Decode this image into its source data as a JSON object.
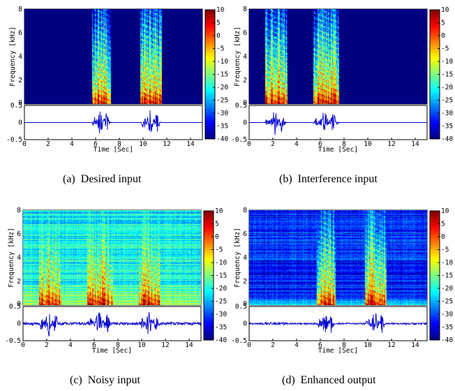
{
  "figure": {
    "panels": [
      {
        "letter": "(a)",
        "caption": "Desired input"
      },
      {
        "letter": "(b)",
        "caption": "Interference input"
      },
      {
        "letter": "(c)",
        "caption": "Noisy input"
      },
      {
        "letter": "(d)",
        "caption": "Enhanced output"
      }
    ],
    "spectrogram_ylabel": "Frequency [kHz]",
    "time_xlabel": "Time [Sec]",
    "freq_ticks": [
      "0",
      "2",
      "4",
      "6",
      "8"
    ],
    "wave_ticks": [
      "-0.5",
      "0",
      "0.5"
    ],
    "time_ticks": [
      "0",
      "2",
      "4",
      "6",
      "8",
      "10",
      "12",
      "14"
    ],
    "colorbar_ticks": [
      "10",
      "5",
      "0",
      "-5",
      "-10",
      "-15",
      "-20",
      "-25",
      "-30",
      "-35",
      "-40"
    ]
  },
  "chart_data": [
    {
      "type": "heatmap",
      "panel": "(a) Desired input",
      "xlabel": "Time [Sec]",
      "ylabel": "Frequency [kHz]",
      "xlim": [
        0,
        15
      ],
      "ylim": [
        0,
        8
      ],
      "clim": [
        -40,
        10
      ],
      "colormap": "jet",
      "speech_segments_sec": [
        [
          5.7,
          7.3
        ],
        [
          9.8,
          11.6
        ]
      ],
      "waveform_ylim": [
        -0.5,
        0.5
      ],
      "background": "uniform -40 dB outside speech segments"
    },
    {
      "type": "heatmap",
      "panel": "(b) Interference input",
      "xlabel": "Time [Sec]",
      "ylabel": "Frequency [kHz]",
      "xlim": [
        0,
        15
      ],
      "ylim": [
        0,
        8
      ],
      "clim": [
        -40,
        10
      ],
      "colormap": "jet",
      "speech_segments_sec": [
        [
          1.3,
          3.2
        ],
        [
          5.4,
          7.6
        ]
      ],
      "waveform_ylim": [
        -0.5,
        0.5
      ],
      "background": "uniform -40 dB outside speech segments"
    },
    {
      "type": "heatmap",
      "panel": "(c) Noisy input",
      "xlabel": "Time [Sec]",
      "ylabel": "Frequency [kHz]",
      "xlim": [
        0,
        15
      ],
      "ylim": [
        0,
        8
      ],
      "clim": [
        -40,
        10
      ],
      "colormap": "jet",
      "speech_segments_sec": [
        [
          1.3,
          3.2
        ],
        [
          5.4,
          7.6
        ],
        [
          9.8,
          11.6
        ]
      ],
      "waveform_ylim": [
        -0.5,
        0.5
      ],
      "background": "broadband noise around -20 dB throughout"
    },
    {
      "type": "heatmap",
      "panel": "(d) Enhanced output",
      "xlabel": "Time [Sec]",
      "ylabel": "Frequency [kHz]",
      "xlim": [
        0,
        15
      ],
      "ylim": [
        0,
        8
      ],
      "clim": [
        -40,
        10
      ],
      "colormap": "jet",
      "speech_segments_sec": [
        [
          5.7,
          7.3
        ],
        [
          9.8,
          11.6
        ]
      ],
      "residual_interference_sec": [
        [
          1.3,
          3.2
        ]
      ],
      "waveform_ylim": [
        -0.5,
        0.5
      ],
      "background": "residual noise around -32 dB"
    }
  ]
}
